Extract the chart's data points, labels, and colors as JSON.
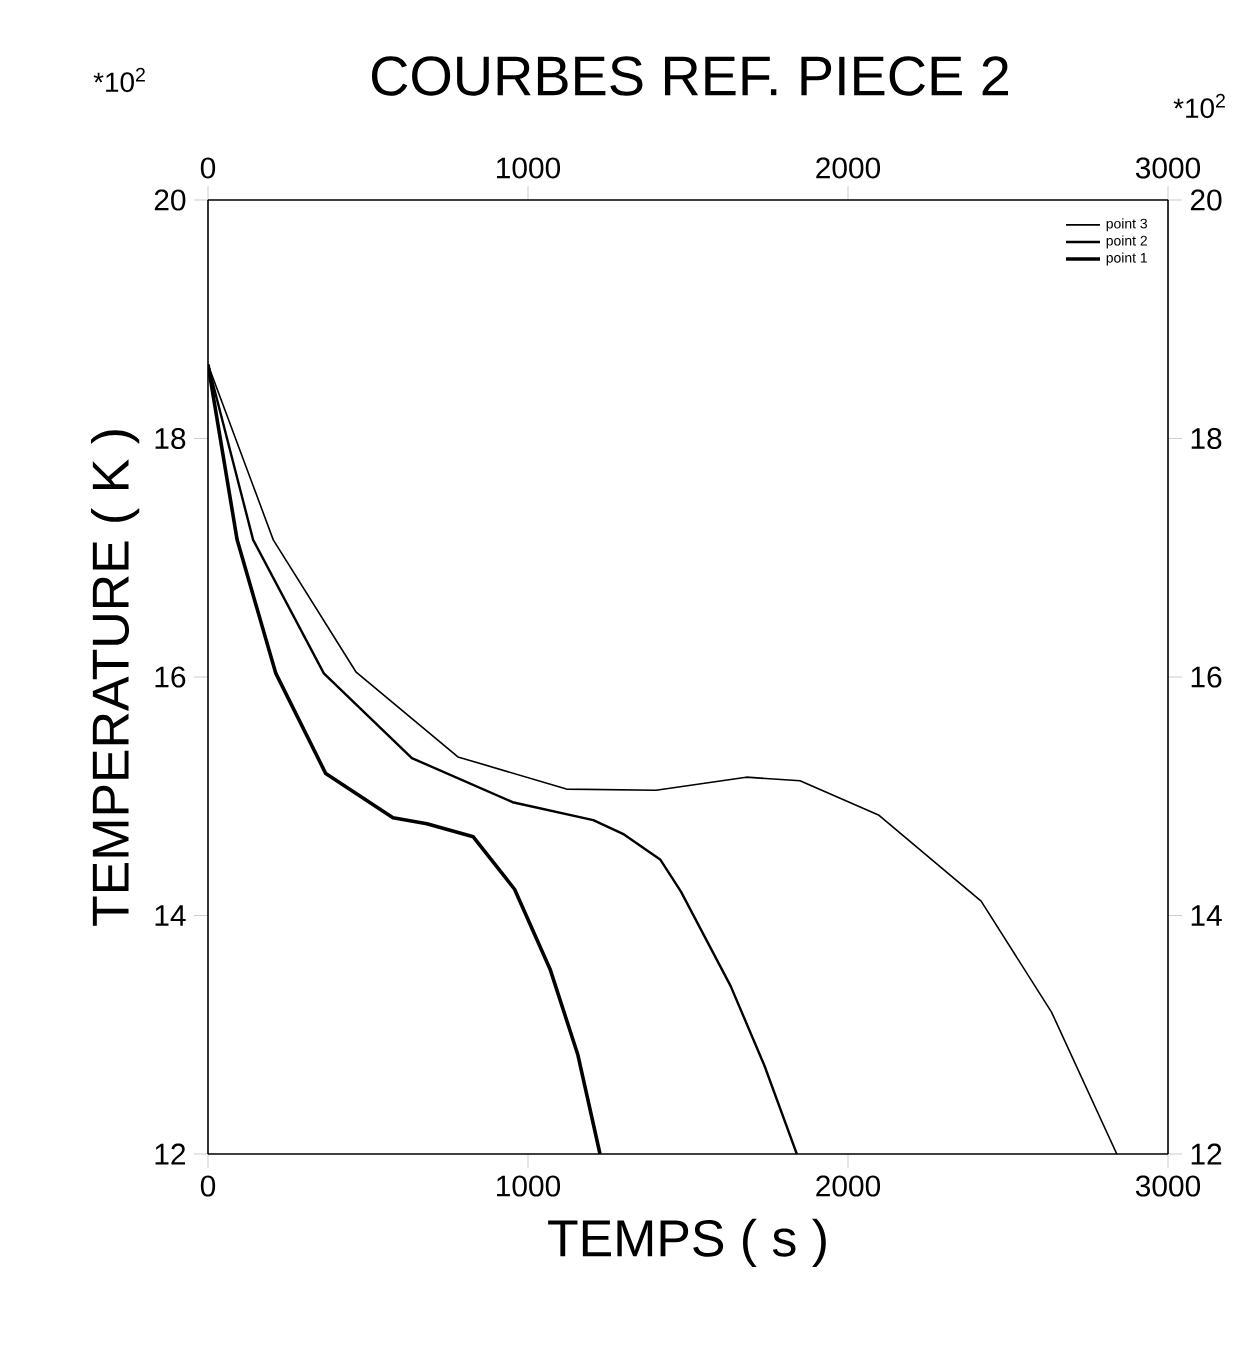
{
  "chart_data": {
    "type": "line",
    "title": "COURBES REF. PIECE 2",
    "xlabel": "TEMPS ( s )",
    "ylabel": "TEMPERATURE ( K )",
    "annotations": [
      "*10$^{2}$",
      "*10$^{2}$"
    ],
    "xlim": [
      0,
      3000
    ],
    "xticks": [
      0,
      1000,
      2000,
      3000
    ],
    "ylim": [
      12,
      20
    ],
    "yticks": [
      12,
      14,
      16,
      18,
      20
    ],
    "x2lim": [
      0,
      3000
    ],
    "x2ticks": [
      0,
      1000,
      2000,
      3000
    ],
    "y2lim": [
      12,
      20
    ],
    "y2ticks": [
      12,
      14,
      16,
      18,
      20
    ],
    "legend": "top right",
    "line_style": "solid",
    "series": [
      {
        "name": "point 3",
        "color": "#000000",
        "x": [
          0,
          204,
          463,
          781,
          1120,
          1400,
          1682,
          1850,
          2097,
          2416,
          2636,
          2840
        ],
        "values": [
          18.62,
          17.15,
          16.04,
          15.33,
          15.06,
          15.05,
          15.16,
          15.13,
          14.84,
          14.12,
          13.19,
          12.0
        ]
      },
      {
        "name": "point 2",
        "color": "#000000",
        "x": [
          0,
          141,
          362,
          637,
          952,
          1204,
          1300,
          1413,
          1478,
          1633,
          1739,
          1840
        ],
        "values": [
          18.62,
          17.15,
          16.03,
          15.32,
          14.95,
          14.8,
          14.68,
          14.47,
          14.2,
          13.41,
          12.74,
          12.0
        ]
      },
      {
        "name": "point 1",
        "color": "#000000",
        "x": [
          0,
          91,
          212,
          368,
          578,
          684,
          829,
          958,
          1069,
          1156,
          1225
        ],
        "values": [
          18.62,
          17.15,
          16.03,
          15.19,
          14.82,
          14.77,
          14.66,
          14.22,
          13.55,
          12.83,
          12.0
        ]
      }
    ]
  }
}
